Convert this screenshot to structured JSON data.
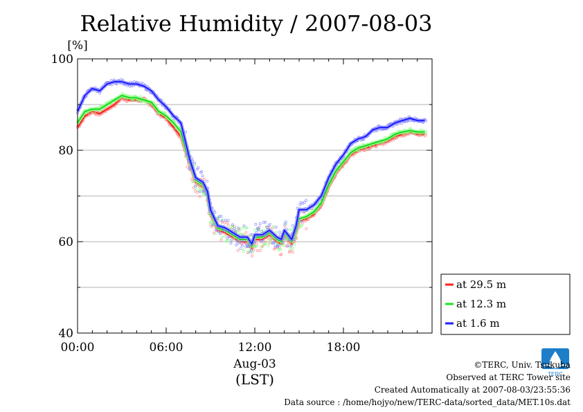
{
  "chart_data": {
    "type": "line",
    "title": "Relative Humidity / 2007-08-03",
    "ylabel": "[%]",
    "xlabel_date": "Aug-03",
    "xlabel_unit": "(LST)",
    "xlim": [
      0,
      24
    ],
    "ylim": [
      40,
      100
    ],
    "xticks": [
      {
        "value": 0,
        "label": "00:00"
      },
      {
        "value": 6,
        "label": "06:00"
      },
      {
        "value": 12,
        "label": "12:00"
      },
      {
        "value": 18,
        "label": "18:00"
      }
    ],
    "yticks": [
      {
        "value": 40,
        "label": "40"
      },
      {
        "value": 60,
        "label": "60"
      },
      {
        "value": 80,
        "label": "80"
      },
      {
        "value": 100,
        "label": "100"
      }
    ],
    "grid": true,
    "legend_position": "right-bottom",
    "series": [
      {
        "name": "at 29.5 m",
        "color": "#ff0000",
        "glow": "#ff8080",
        "points": [
          [
            0,
            85
          ],
          [
            0.5,
            87.5
          ],
          [
            1,
            88.5
          ],
          [
            1.5,
            88
          ],
          [
            2,
            89
          ],
          [
            2.5,
            90
          ],
          [
            3,
            91.5
          ],
          [
            3.5,
            91
          ],
          [
            4,
            91
          ],
          [
            4.5,
            91
          ],
          [
            5,
            90
          ],
          [
            5.5,
            88
          ],
          [
            6,
            87
          ],
          [
            6.5,
            85
          ],
          [
            7,
            83
          ],
          [
            7.3,
            80
          ],
          [
            7.6,
            77
          ],
          [
            8,
            73
          ],
          [
            8.5,
            72
          ],
          [
            8.8,
            70
          ],
          [
            9,
            66
          ],
          [
            9.5,
            62.5
          ],
          [
            10,
            62
          ],
          [
            10.5,
            61
          ],
          [
            11,
            60
          ],
          [
            11.5,
            60
          ],
          [
            11.8,
            58.5
          ],
          [
            12,
            60.5
          ],
          [
            12.5,
            60.5
          ],
          [
            13,
            61.5
          ],
          [
            13.5,
            60
          ],
          [
            13.8,
            59.5
          ],
          [
            14,
            61.5
          ],
          [
            14.5,
            59.5
          ],
          [
            14.8,
            62
          ],
          [
            15,
            64.5
          ],
          [
            15.5,
            65
          ],
          [
            16,
            66
          ],
          [
            16.5,
            68
          ],
          [
            17,
            72
          ],
          [
            17.5,
            75
          ],
          [
            18,
            77
          ],
          [
            18.5,
            79
          ],
          [
            19,
            80
          ],
          [
            19.5,
            80.5
          ],
          [
            20,
            81
          ],
          [
            20.5,
            81.5
          ],
          [
            21,
            82
          ],
          [
            21.5,
            83
          ],
          [
            22,
            83.5
          ],
          [
            22.5,
            84
          ],
          [
            23,
            83.5
          ],
          [
            23.5,
            83.5
          ]
        ]
      },
      {
        "name": "at 12.3 m",
        "color": "#00cc00",
        "glow": "#80ff80",
        "points": [
          [
            0,
            86
          ],
          [
            0.5,
            88.5
          ],
          [
            1,
            89
          ],
          [
            1.5,
            89
          ],
          [
            2,
            90
          ],
          [
            2.5,
            91
          ],
          [
            3,
            92
          ],
          [
            3.5,
            91.5
          ],
          [
            4,
            91.5
          ],
          [
            4.5,
            91
          ],
          [
            5,
            90.5
          ],
          [
            5.5,
            88.5
          ],
          [
            6,
            87.5
          ],
          [
            6.5,
            86
          ],
          [
            7,
            84
          ],
          [
            7.3,
            80.5
          ],
          [
            7.6,
            77.5
          ],
          [
            8,
            73.5
          ],
          [
            8.5,
            72.5
          ],
          [
            8.8,
            70.5
          ],
          [
            9,
            66.5
          ],
          [
            9.5,
            63
          ],
          [
            10,
            62.5
          ],
          [
            10.5,
            61.5
          ],
          [
            11,
            60.5
          ],
          [
            11.5,
            60.5
          ],
          [
            11.8,
            59
          ],
          [
            12,
            61
          ],
          [
            12.5,
            61
          ],
          [
            13,
            62
          ],
          [
            13.5,
            60.5
          ],
          [
            13.8,
            60
          ],
          [
            14,
            62
          ],
          [
            14.5,
            60
          ],
          [
            14.8,
            62.5
          ],
          [
            15,
            65
          ],
          [
            15.5,
            65.5
          ],
          [
            16,
            66.5
          ],
          [
            16.5,
            68.5
          ],
          [
            17,
            72.5
          ],
          [
            17.5,
            75.5
          ],
          [
            18,
            77.5
          ],
          [
            18.5,
            79.5
          ],
          [
            19,
            80.5
          ],
          [
            19.5,
            81
          ],
          [
            20,
            81.5
          ],
          [
            20.5,
            82
          ],
          [
            21,
            82.5
          ],
          [
            21.5,
            83.5
          ],
          [
            22,
            84
          ],
          [
            22.5,
            84.3
          ],
          [
            23,
            84
          ],
          [
            23.5,
            84
          ]
        ]
      },
      {
        "name": "at 1.6 m",
        "color": "#0000ff",
        "glow": "#8080ff",
        "points": [
          [
            0,
            88.5
          ],
          [
            0.5,
            92
          ],
          [
            1,
            93.5
          ],
          [
            1.5,
            93
          ],
          [
            2,
            94.5
          ],
          [
            2.5,
            95
          ],
          [
            3,
            95
          ],
          [
            3.5,
            94.5
          ],
          [
            4,
            94.5
          ],
          [
            4.5,
            94
          ],
          [
            5,
            93
          ],
          [
            5.5,
            91
          ],
          [
            6,
            89.5
          ],
          [
            6.5,
            87.5
          ],
          [
            7,
            86
          ],
          [
            7.3,
            82
          ],
          [
            7.6,
            78
          ],
          [
            8,
            74
          ],
          [
            8.5,
            73
          ],
          [
            8.8,
            71
          ],
          [
            9,
            67
          ],
          [
            9.5,
            63.5
          ],
          [
            10,
            63
          ],
          [
            10.5,
            62
          ],
          [
            11,
            61
          ],
          [
            11.5,
            61
          ],
          [
            11.8,
            59.5
          ],
          [
            12,
            61.5
          ],
          [
            12.5,
            61.5
          ],
          [
            13,
            62.5
          ],
          [
            13.5,
            61
          ],
          [
            13.8,
            60.5
          ],
          [
            14,
            62.5
          ],
          [
            14.5,
            60.5
          ],
          [
            14.8,
            63.5
          ],
          [
            15,
            67
          ],
          [
            15.5,
            67
          ],
          [
            16,
            68
          ],
          [
            16.5,
            70
          ],
          [
            17,
            74
          ],
          [
            17.5,
            77
          ],
          [
            18,
            79
          ],
          [
            18.5,
            81.5
          ],
          [
            19,
            82.5
          ],
          [
            19.5,
            83
          ],
          [
            20,
            84.5
          ],
          [
            20.5,
            85
          ],
          [
            21,
            85
          ],
          [
            21.5,
            86
          ],
          [
            22,
            86.5
          ],
          [
            22.5,
            87
          ],
          [
            23,
            86.5
          ],
          [
            23.5,
            86.5
          ]
        ]
      }
    ]
  },
  "footer": {
    "copyright": "©TERC, Univ. Tsukuba",
    "observed": "Observed at TERC Tower site",
    "created": "Created Automatically at 2007-08-03/23:55:36",
    "source": "Data source : /home/hojyo/new/TERC-data/sorted_data/MET.10s.dat"
  },
  "logo": {
    "text": "TERC",
    "color": "#1e7ec8"
  }
}
